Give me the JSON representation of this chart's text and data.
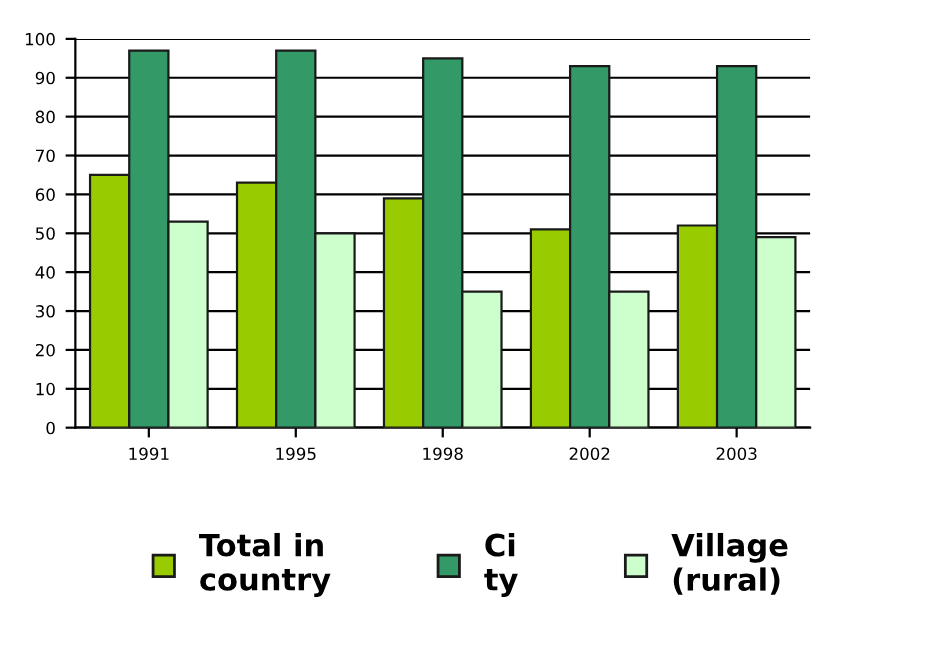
{
  "chart_data": {
    "type": "bar",
    "categories": [
      "1991",
      "1995",
      "1998",
      "2002",
      "2003"
    ],
    "series": [
      {
        "name": "Total in\ncountry",
        "color": "#99cc00",
        "values": [
          65,
          63,
          59,
          51,
          52
        ]
      },
      {
        "name": "Ci\nty",
        "color": "#339966",
        "values": [
          97,
          97,
          95,
          93,
          93
        ]
      },
      {
        "name": "Village\n(rural)",
        "color": "#ccffcc",
        "values": [
          53,
          50,
          35,
          35,
          49
        ]
      }
    ],
    "ylim": [
      0,
      100
    ],
    "yticks": [
      0,
      10,
      20,
      30,
      40,
      50,
      60,
      70,
      80,
      90,
      100
    ],
    "grid": "y",
    "legend": "bottom"
  }
}
